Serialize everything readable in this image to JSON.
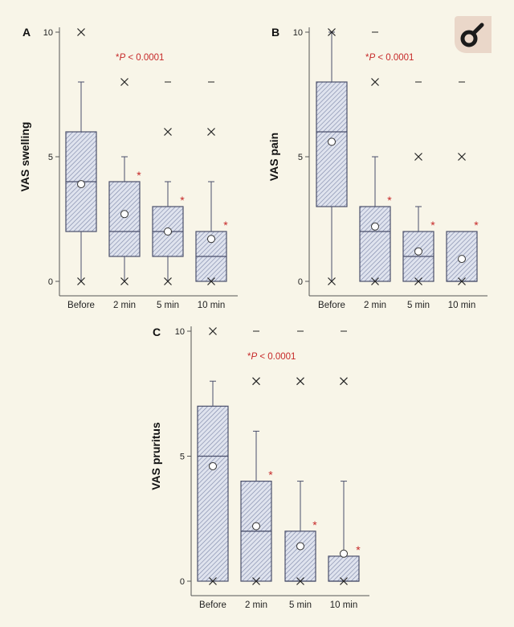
{
  "significance_note_prefix": "*",
  "significance_note_italic": "P",
  "significance_note_suffix": " < 0.0001",
  "colors": {
    "accent_red": "#c62828",
    "box_line": "#4a4f6b",
    "box_fill": "#dfe3ee",
    "background": "#f8f5e8"
  },
  "logo_icon": "open-access-style-logo-icon",
  "chart_data": [
    {
      "panel": "A",
      "type": "box",
      "ylabel": "VAS swelling",
      "ylim": [
        0,
        10
      ],
      "yticks": [
        0,
        5,
        10
      ],
      "categories": [
        "Before",
        "2 min",
        "5 min",
        "10 min"
      ],
      "boxes": [
        {
          "q1": 2,
          "median": 4,
          "q3": 6,
          "whisker_low": 0,
          "whisker_high": 8,
          "mean": 3.9,
          "min_x": 0,
          "max_x": 10,
          "outliers_x": [],
          "outliers_dash": [],
          "star": false
        },
        {
          "q1": 1,
          "median": 2,
          "q3": 4,
          "whisker_low": 0,
          "whisker_high": 5,
          "mean": 2.7,
          "min_x": 0,
          "max_x": null,
          "outliers_x": [
            8
          ],
          "outliers_dash": [],
          "star": true
        },
        {
          "q1": 1,
          "median": 2,
          "q3": 3,
          "whisker_low": 0,
          "whisker_high": 4,
          "mean": 2.0,
          "min_x": 0,
          "max_x": null,
          "outliers_x": [
            6
          ],
          "outliers_dash": [
            8
          ],
          "star": true
        },
        {
          "q1": 0,
          "median": 1,
          "q3": 2,
          "whisker_low": 0,
          "whisker_high": 4,
          "mean": 1.7,
          "min_x": 0,
          "max_x": null,
          "outliers_x": [
            6
          ],
          "outliers_dash": [
            8
          ],
          "star": true
        }
      ]
    },
    {
      "panel": "B",
      "type": "box",
      "ylabel": "VAS pain",
      "ylim": [
        0,
        10
      ],
      "yticks": [
        0,
        5,
        10
      ],
      "categories": [
        "Before",
        "2 min",
        "5 min",
        "10 min"
      ],
      "boxes": [
        {
          "q1": 3,
          "median": 6,
          "q3": 8,
          "whisker_low": 0,
          "whisker_high": 10,
          "mean": 5.6,
          "min_x": 0,
          "max_x": 10,
          "outliers_x": [],
          "outliers_dash": [],
          "star": false
        },
        {
          "q1": 0,
          "median": 2,
          "q3": 3,
          "whisker_low": 0,
          "whisker_high": 5,
          "mean": 2.2,
          "min_x": 0,
          "max_x": null,
          "outliers_x": [
            8
          ],
          "outliers_dash": [
            10
          ],
          "star": true
        },
        {
          "q1": 0,
          "median": 1,
          "q3": 2,
          "whisker_low": 0,
          "whisker_high": 3,
          "mean": 1.2,
          "min_x": 0,
          "max_x": null,
          "outliers_x": [
            5
          ],
          "outliers_dash": [
            8
          ],
          "star": true
        },
        {
          "q1": 0,
          "median": 0,
          "q3": 2,
          "whisker_low": 0,
          "whisker_high": 2,
          "mean": 0.9,
          "min_x": 0,
          "max_x": null,
          "outliers_x": [
            5
          ],
          "outliers_dash": [
            8
          ],
          "star": true
        }
      ]
    },
    {
      "panel": "C",
      "type": "box",
      "ylabel": "VAS pruritus",
      "ylim": [
        0,
        10
      ],
      "yticks": [
        0,
        5,
        10
      ],
      "categories": [
        "Before",
        "2 min",
        "5 min",
        "10 min"
      ],
      "boxes": [
        {
          "q1": 0,
          "median": 5,
          "q3": 7,
          "whisker_low": 0,
          "whisker_high": 8,
          "mean": 4.6,
          "min_x": 0,
          "max_x": 10,
          "outliers_x": [],
          "outliers_dash": [],
          "star": false
        },
        {
          "q1": 0,
          "median": 2,
          "q3": 4,
          "whisker_low": 0,
          "whisker_high": 6,
          "mean": 2.2,
          "min_x": 0,
          "max_x": null,
          "outliers_x": [
            8
          ],
          "outliers_dash": [
            10
          ],
          "star": true
        },
        {
          "q1": 0,
          "median": 0,
          "q3": 2,
          "whisker_low": 0,
          "whisker_high": 4,
          "mean": 1.4,
          "min_x": 0,
          "max_x": null,
          "outliers_x": [
            8
          ],
          "outliers_dash": [
            10
          ],
          "star": true
        },
        {
          "q1": 0,
          "median": 0,
          "q3": 1,
          "whisker_low": 0,
          "whisker_high": 4,
          "mean": 1.1,
          "min_x": 0,
          "max_x": null,
          "outliers_x": [
            8
          ],
          "outliers_dash": [
            10
          ],
          "star": true
        }
      ]
    }
  ]
}
